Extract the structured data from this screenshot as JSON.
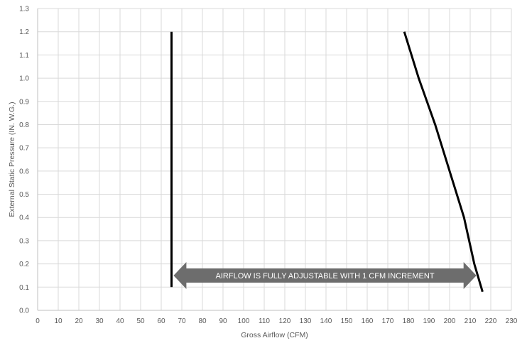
{
  "chart_data": {
    "type": "line",
    "xlabel": "Gross Airflow (CFM)",
    "ylabel": "External Static Pressure (IN. W.G.)",
    "xlim": [
      0,
      230
    ],
    "ylim": [
      0,
      1.3
    ],
    "x_ticks": [
      "0",
      "10",
      "20",
      "30",
      "40",
      "50",
      "60",
      "70",
      "80",
      "90",
      "100",
      "110",
      "120",
      "130",
      "140",
      "150",
      "160",
      "170",
      "180",
      "190",
      "200",
      "210",
      "220",
      "230"
    ],
    "y_ticks": [
      "0.0",
      "0.1",
      "0.2",
      "0.3",
      "0.4",
      "0.5",
      "0.6",
      "0.7",
      "0.8",
      "0.9",
      "1.0",
      "1.1",
      "1.2",
      "1.3"
    ],
    "grid": true,
    "series": [
      {
        "x": [
          65,
          65
        ],
        "y": [
          0.1,
          1.2
        ],
        "color": "#000000"
      },
      {
        "x": [
          178,
          185,
          193,
          200,
          207,
          212,
          216
        ],
        "y": [
          1.2,
          1.0,
          0.8,
          0.6,
          0.4,
          0.2,
          0.08
        ],
        "color": "#000000"
      }
    ],
    "annotation": {
      "text": "AIRFLOW IS FULLY ADJUSTABLE WITH 1 CFM INCREMENT",
      "x_from": 66,
      "x_to": 213,
      "y": 0.15,
      "color": "#6d6d6d"
    }
  }
}
